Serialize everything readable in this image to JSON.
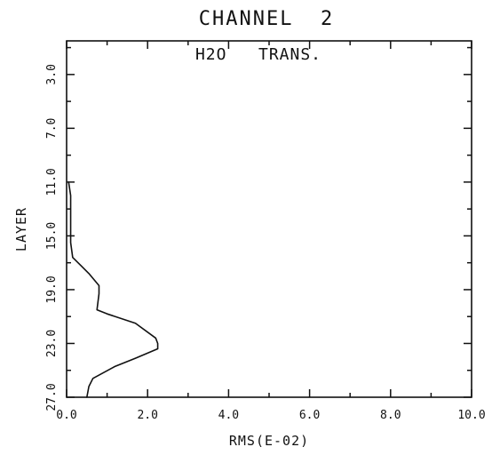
{
  "chart_data": {
    "type": "line",
    "title": "CHANNEL  2",
    "annotation": "H2O   TRANS.",
    "xlabel": "RMS(E-02)",
    "ylabel": "LAYER",
    "xlim": [
      0,
      10
    ],
    "ylim": [
      27,
      0.5
    ],
    "y_inverted": true,
    "x_tick_labels": [
      "0.0",
      "2.0",
      "4.0",
      "6.0",
      "8.0",
      "10.0"
    ],
    "x_tick_values": [
      0,
      2,
      4,
      6,
      8,
      10
    ],
    "x_minor_ticks": [
      1,
      3,
      5,
      7,
      9
    ],
    "y_tick_labels": [
      "3.0",
      "7.0",
      "11.0",
      "15.0",
      "19.0",
      "23.0",
      "27.0"
    ],
    "y_tick_values": [
      3,
      7,
      11,
      15,
      19,
      23,
      27
    ],
    "y_minor_ticks": [
      1,
      5,
      9,
      13,
      17,
      21,
      25
    ],
    "grid": false,
    "series": [
      {
        "points": [
          {
            "x": 0.05,
            "y": 11.0
          },
          {
            "x": 0.1,
            "y": 12.0
          },
          {
            "x": 0.1,
            "y": 15.5
          },
          {
            "x": 0.15,
            "y": 16.6
          },
          {
            "x": 0.35,
            "y": 17.2
          },
          {
            "x": 0.55,
            "y": 17.8
          },
          {
            "x": 0.8,
            "y": 18.7
          },
          {
            "x": 0.8,
            "y": 19.3
          },
          {
            "x": 0.75,
            "y": 20.5
          },
          {
            "x": 1.0,
            "y": 20.8
          },
          {
            "x": 1.7,
            "y": 21.5
          },
          {
            "x": 2.2,
            "y": 22.6
          },
          {
            "x": 2.25,
            "y": 23.0
          },
          {
            "x": 2.25,
            "y": 23.4
          },
          {
            "x": 1.7,
            "y": 24.1
          },
          {
            "x": 1.2,
            "y": 24.7
          },
          {
            "x": 0.65,
            "y": 25.6
          },
          {
            "x": 0.55,
            "y": 26.2
          },
          {
            "x": 0.5,
            "y": 27.0
          }
        ]
      }
    ]
  }
}
